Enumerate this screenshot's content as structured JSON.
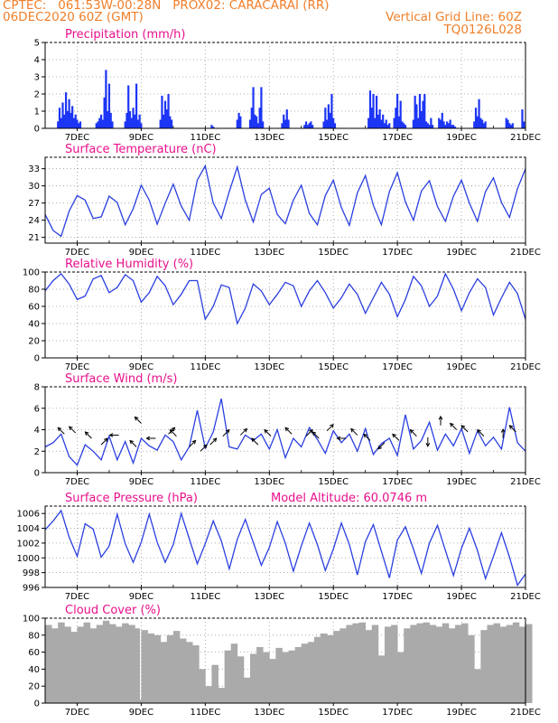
{
  "header": {
    "line1": "CPTEC:   061:53W-00:28N   PROX02: CARACARAI (RR)",
    "line2": "06DEC2020 60Z (GMT)",
    "grid_note": "Vertical Grid Line: 60Z",
    "code": "TQ0126L028"
  },
  "colors": {
    "header": "#f07f2a",
    "title": "#e8108c",
    "line": "#2a3fe0",
    "bar": "#1d35f5",
    "cloud": "#aaaaaa",
    "grid": "#999999"
  },
  "chart_data": [
    {
      "id": "precip",
      "type": "bar",
      "title": "Precipitation (mm/h)",
      "x_ticks": [
        "7DEC",
        "9DEC",
        "11DEC",
        "13DEC",
        "15DEC",
        "17DEC",
        "19DEC",
        "21DEC"
      ],
      "xlim": [
        6.0,
        21.0
      ],
      "ylim": [
        0,
        5
      ],
      "y_ticks": [
        0,
        1,
        2,
        3,
        4,
        5
      ],
      "grid": true,
      "x": [
        6.4,
        6.45,
        6.5,
        6.55,
        6.6,
        6.65,
        6.7,
        6.75,
        6.8,
        6.85,
        6.9,
        6.95,
        7.0,
        7.05,
        7.1,
        7.6,
        7.65,
        7.7,
        7.75,
        7.8,
        7.85,
        7.9,
        7.95,
        8.0,
        8.05,
        8.1,
        8.5,
        8.55,
        8.6,
        8.65,
        8.7,
        8.75,
        8.8,
        8.85,
        8.9,
        8.95,
        9.0,
        9.6,
        9.65,
        9.7,
        9.75,
        9.8,
        9.85,
        9.9,
        9.95,
        11.2,
        11.25,
        12.0,
        12.05,
        12.1,
        12.4,
        12.45,
        12.5,
        12.55,
        12.6,
        12.65,
        12.7,
        12.75,
        12.8,
        13.4,
        13.45,
        13.5,
        13.55,
        13.6,
        14.1,
        14.15,
        14.2,
        14.25,
        14.3,
        14.35,
        14.7,
        14.75,
        14.8,
        14.85,
        14.9,
        14.95,
        15.0,
        15.05,
        16.1,
        16.15,
        16.2,
        16.25,
        16.3,
        16.35,
        16.4,
        16.45,
        16.5,
        16.55,
        16.6,
        16.65,
        16.7,
        16.75,
        16.9,
        16.95,
        17.0,
        17.05,
        17.1,
        17.15,
        17.2,
        17.25,
        17.5,
        17.55,
        17.6,
        17.65,
        17.7,
        17.75,
        17.8,
        17.85,
        17.9,
        17.95,
        18.0,
        18.05,
        18.1,
        18.3,
        18.35,
        18.4,
        18.45,
        18.5,
        18.55,
        18.6,
        18.65,
        18.7,
        18.75,
        18.8,
        19.4,
        19.45,
        19.5,
        19.55,
        19.6,
        19.65,
        19.7,
        19.75,
        20.4,
        20.45,
        20.5,
        20.55,
        20.6,
        20.9,
        20.95
      ],
      "values": [
        0.4,
        1.2,
        0.6,
        1.5,
        0.8,
        2.1,
        1.0,
        1.7,
        0.9,
        1.3,
        0.6,
        0.8,
        0.5,
        0.3,
        0.4,
        0.3,
        0.4,
        0.6,
        0.8,
        0.5,
        1.8,
        3.4,
        1.0,
        2.6,
        0.9,
        0.4,
        0.4,
        0.9,
        2.5,
        1.0,
        0.6,
        1.2,
        0.8,
        2.6,
        0.5,
        0.8,
        0.3,
        0.5,
        1.9,
        0.8,
        1.6,
        1.1,
        2.0,
        0.7,
        0.5,
        0.2,
        0.1,
        0.5,
        0.9,
        0.7,
        0.5,
        1.2,
        2.4,
        0.8,
        0.7,
        0.3,
        1.2,
        2.4,
        0.4,
        0.3,
        0.8,
        0.5,
        1.1,
        0.5,
        0.2,
        0.4,
        0.2,
        0.3,
        0.4,
        0.2,
        0.4,
        1.2,
        0.5,
        1.4,
        0.9,
        2.0,
        0.6,
        0.3,
        0.6,
        2.2,
        1.2,
        2.0,
        0.6,
        1.9,
        0.8,
        1.1,
        0.5,
        0.8,
        0.3,
        0.5,
        0.2,
        0.3,
        0.6,
        1.2,
        2.0,
        0.7,
        1.6,
        0.4,
        0.3,
        0.2,
        0.5,
        1.9,
        1.4,
        0.6,
        2.0,
        1.0,
        1.6,
        2.0,
        0.4,
        0.3,
        0.2,
        0.6,
        0.2,
        0.6,
        0.5,
        0.9,
        0.4,
        0.2,
        0.4,
        0.3,
        0.5,
        0.2,
        0.2,
        0.1,
        0.4,
        1.2,
        0.7,
        1.7,
        0.6,
        0.5,
        0.3,
        0.4,
        0.6,
        0.5,
        0.3,
        0.2,
        0.3,
        1.1,
        0.4
      ]
    },
    {
      "id": "temp",
      "type": "line",
      "title": "Surface Temperature (nC)",
      "x_ticks": [
        "7DEC",
        "9DEC",
        "11DEC",
        "13DEC",
        "15DEC",
        "17DEC",
        "19DEC",
        "21DEC"
      ],
      "xlim": [
        6.0,
        21.0
      ],
      "ylim": [
        20,
        35
      ],
      "y_ticks": [
        21,
        24,
        27,
        30,
        33
      ],
      "grid": true,
      "x": [
        6.0,
        6.25,
        6.5,
        6.75,
        7.0,
        7.25,
        7.5,
        7.75,
        8.0,
        8.25,
        8.5,
        8.75,
        9.0,
        9.25,
        9.5,
        9.75,
        10.0,
        10.25,
        10.5,
        10.75,
        11.0,
        11.25,
        11.5,
        11.75,
        12.0,
        12.25,
        12.5,
        12.75,
        13.0,
        13.25,
        13.5,
        13.75,
        14.0,
        14.25,
        14.5,
        14.75,
        15.0,
        15.25,
        15.5,
        15.75,
        16.0,
        16.25,
        16.5,
        16.75,
        17.0,
        17.25,
        17.5,
        17.75,
        18.0,
        18.25,
        18.5,
        18.75,
        19.0,
        19.25,
        19.5,
        19.75,
        20.0,
        20.25,
        20.5,
        20.75,
        21.0
      ],
      "values": [
        25.0,
        22.2,
        21.2,
        25.6,
        28.3,
        27.5,
        24.3,
        24.6,
        28.2,
        27.1,
        23.2,
        26.0,
        30.1,
        27.5,
        23.3,
        27.0,
        30.3,
        26.5,
        24.0,
        31.0,
        33.5,
        27.0,
        24.3,
        29.0,
        33.3,
        27.5,
        23.7,
        28.5,
        29.6,
        25.0,
        23.4,
        27.5,
        30.1,
        25.2,
        23.2,
        28.3,
        31.0,
        26.2,
        23.1,
        28.8,
        31.8,
        26.6,
        23.2,
        29.0,
        32.3,
        27.2,
        24.0,
        29.1,
        30.9,
        26.4,
        23.8,
        28.2,
        31.0,
        27.0,
        23.8,
        29.0,
        31.4,
        27.1,
        24.5,
        29.5,
        33.0
      ]
    },
    {
      "id": "rh",
      "type": "line",
      "title": "Relative Humidity (%)",
      "x_ticks": [
        "7DEC",
        "9DEC",
        "11DEC",
        "13DEC",
        "15DEC",
        "17DEC",
        "19DEC",
        "21DEC"
      ],
      "xlim": [
        6.0,
        21.0
      ],
      "ylim": [
        0,
        100
      ],
      "y_ticks": [
        0,
        20,
        40,
        60,
        80,
        100
      ],
      "grid": true,
      "x": [
        6.0,
        6.25,
        6.5,
        6.75,
        7.0,
        7.25,
        7.5,
        7.75,
        8.0,
        8.25,
        8.5,
        8.75,
        9.0,
        9.25,
        9.5,
        9.75,
        10.0,
        10.25,
        10.5,
        10.75,
        11.0,
        11.25,
        11.5,
        11.75,
        12.0,
        12.25,
        12.5,
        12.75,
        13.0,
        13.25,
        13.5,
        13.75,
        14.0,
        14.25,
        14.5,
        14.75,
        15.0,
        15.25,
        15.5,
        15.75,
        16.0,
        16.25,
        16.5,
        16.75,
        17.0,
        17.25,
        17.5,
        17.75,
        18.0,
        18.25,
        18.5,
        18.75,
        19.0,
        19.25,
        19.5,
        19.75,
        20.0,
        20.25,
        20.5,
        20.75,
        21.0
      ],
      "values": [
        78,
        90,
        98,
        86,
        68,
        72,
        92,
        96,
        76,
        82,
        97,
        90,
        65,
        76,
        95,
        84,
        62,
        74,
        90,
        90,
        45,
        60,
        85,
        82,
        40,
        58,
        86,
        78,
        62,
        74,
        88,
        84,
        60,
        78,
        90,
        76,
        58,
        70,
        86,
        74,
        52,
        70,
        88,
        74,
        48,
        68,
        95,
        84,
        60,
        72,
        98,
        80,
        55,
        76,
        92,
        82,
        50,
        70,
        88,
        75,
        45
      ]
    },
    {
      "id": "wind",
      "type": "line",
      "title": "Surface Wind (m/s)",
      "x_ticks": [
        "7DEC",
        "9DEC",
        "11DEC",
        "13DEC",
        "15DEC",
        "17DEC",
        "19DEC",
        "21DEC"
      ],
      "xlim": [
        6.0,
        21.0
      ],
      "ylim": [
        0,
        8
      ],
      "y_ticks": [
        0,
        2,
        4,
        6,
        8
      ],
      "grid": true,
      "x": [
        6.0,
        6.25,
        6.5,
        6.75,
        7.0,
        7.25,
        7.5,
        7.75,
        8.0,
        8.25,
        8.5,
        8.75,
        9.0,
        9.25,
        9.5,
        9.75,
        10.0,
        10.25,
        10.5,
        10.75,
        11.0,
        11.25,
        11.5,
        11.75,
        12.0,
        12.25,
        12.5,
        12.75,
        13.0,
        13.25,
        13.5,
        13.75,
        14.0,
        14.25,
        14.5,
        14.75,
        15.0,
        15.25,
        15.5,
        15.75,
        16.0,
        16.25,
        16.5,
        16.75,
        17.0,
        17.25,
        17.5,
        17.75,
        18.0,
        18.25,
        18.5,
        18.75,
        19.0,
        19.25,
        19.5,
        19.75,
        20.0,
        20.25,
        20.5,
        20.75,
        21.0
      ],
      "values": [
        2.4,
        2.8,
        3.6,
        1.5,
        0.7,
        2.6,
        2.0,
        1.2,
        3.4,
        1.2,
        2.9,
        0.9,
        3.2,
        2.5,
        2.1,
        3.5,
        2.9,
        1.2,
        2.4,
        5.8,
        2.3,
        3.8,
        6.9,
        2.4,
        2.2,
        3.5,
        3.0,
        3.6,
        2.2,
        4.0,
        1.4,
        3.2,
        2.4,
        4.2,
        3.1,
        1.8,
        3.9,
        2.8,
        3.6,
        2.0,
        4.1,
        1.7,
        2.7,
        3.2,
        1.6,
        5.4,
        2.2,
        3.0,
        4.7,
        2.1,
        3.6,
        2.5,
        4.1,
        1.8,
        3.9,
        2.5,
        3.3,
        2.2,
        6.1,
        2.8,
        2.0
      ],
      "barbs": [
        {
          "x": 6.6,
          "y": 3.6,
          "dir": "nw"
        },
        {
          "x": 6.95,
          "y": 3.7,
          "dir": "nw"
        },
        {
          "x": 7.45,
          "y": 3.2,
          "dir": "nw"
        },
        {
          "x": 7.75,
          "y": 2.6,
          "dir": "ne"
        },
        {
          "x": 8.3,
          "y": 3.5,
          "dir": "w"
        },
        {
          "x": 8.85,
          "y": 2.4,
          "dir": "nw"
        },
        {
          "x": 9.0,
          "y": 4.6,
          "dir": "nw"
        },
        {
          "x": 9.45,
          "y": 3.2,
          "dir": "w"
        },
        {
          "x": 9.85,
          "y": 3.6,
          "dir": "ne"
        },
        {
          "x": 10.1,
          "y": 3.4,
          "dir": "nw"
        },
        {
          "x": 10.5,
          "y": 2.4,
          "dir": "ne"
        },
        {
          "x": 10.85,
          "y": 2.0,
          "dir": "ne"
        },
        {
          "x": 11.15,
          "y": 2.6,
          "dir": "ne"
        },
        {
          "x": 11.55,
          "y": 3.4,
          "dir": "ne"
        },
        {
          "x": 12.1,
          "y": 3.5,
          "dir": "ne"
        },
        {
          "x": 12.65,
          "y": 2.6,
          "dir": "nw"
        },
        {
          "x": 13.05,
          "y": 3.4,
          "dir": "nw"
        },
        {
          "x": 13.7,
          "y": 3.6,
          "dir": "nw"
        },
        {
          "x": 14.15,
          "y": 3.4,
          "dir": "ne"
        },
        {
          "x": 14.55,
          "y": 3.2,
          "dir": "nw"
        },
        {
          "x": 14.8,
          "y": 3.9,
          "dir": "ne"
        },
        {
          "x": 15.4,
          "y": 3.2,
          "dir": "w"
        },
        {
          "x": 15.75,
          "y": 3.5,
          "dir": "nw"
        },
        {
          "x": 16.15,
          "y": 3.0,
          "dir": "nw"
        },
        {
          "x": 16.6,
          "y": 2.8,
          "dir": "sw"
        },
        {
          "x": 17.05,
          "y": 3.0,
          "dir": "nw"
        },
        {
          "x": 17.6,
          "y": 3.4,
          "dir": "nw"
        },
        {
          "x": 17.95,
          "y": 3.3,
          "dir": "s"
        },
        {
          "x": 18.35,
          "y": 4.4,
          "dir": "n"
        },
        {
          "x": 18.85,
          "y": 4.0,
          "dir": "nw"
        },
        {
          "x": 19.2,
          "y": 3.8,
          "dir": "nw"
        },
        {
          "x": 19.7,
          "y": 3.4,
          "dir": "nw"
        },
        {
          "x": 20.3,
          "y": 3.2,
          "dir": "n"
        },
        {
          "x": 20.7,
          "y": 3.8,
          "dir": "nw"
        }
      ]
    },
    {
      "id": "pressure",
      "type": "line",
      "title": "Surface Pressure (hPa)",
      "annotation": "Model Altitude: 60.0746 m",
      "x_ticks": [
        "7DEC",
        "9DEC",
        "11DEC",
        "13DEC",
        "15DEC",
        "17DEC",
        "19DEC",
        "21DEC"
      ],
      "xlim": [
        6.0,
        21.0
      ],
      "ylim": [
        996,
        1007
      ],
      "y_ticks": [
        996,
        998,
        1000,
        1002,
        1004,
        1006
      ],
      "grid": true,
      "x": [
        6.0,
        6.25,
        6.5,
        6.75,
        7.0,
        7.25,
        7.5,
        7.75,
        8.0,
        8.25,
        8.5,
        8.75,
        9.0,
        9.25,
        9.5,
        9.75,
        10.0,
        10.25,
        10.5,
        10.75,
        11.0,
        11.25,
        11.5,
        11.75,
        12.0,
        12.25,
        12.5,
        12.75,
        13.0,
        13.25,
        13.5,
        13.75,
        14.0,
        14.25,
        14.5,
        14.75,
        15.0,
        15.25,
        15.5,
        15.75,
        16.0,
        16.25,
        16.5,
        16.75,
        17.0,
        17.25,
        17.5,
        17.75,
        18.0,
        18.25,
        18.5,
        18.75,
        19.0,
        19.25,
        19.5,
        19.75,
        20.0,
        20.25,
        20.5,
        20.75,
        21.0
      ],
      "values": [
        1003.8,
        1005.0,
        1006.4,
        1002.8,
        1000.2,
        1004.6,
        1003.9,
        1000.1,
        1001.6,
        1005.9,
        1001.9,
        999.4,
        1002.1,
        1005.9,
        1002.1,
        999.4,
        1001.8,
        1006.0,
        1002.6,
        999.2,
        1001.9,
        1005.0,
        1002.3,
        998.5,
        1002.5,
        1005.2,
        1002.1,
        999.0,
        1001.4,
        1004.9,
        1002.0,
        998.2,
        1001.6,
        1004.7,
        1001.8,
        998.3,
        1001.2,
        1004.7,
        1001.8,
        997.7,
        1002.2,
        1004.5,
        1000.9,
        997.3,
        1002.4,
        1004.2,
        1001.2,
        997.9,
        1002.0,
        1004.4,
        1001.0,
        997.6,
        1001.3,
        1004.0,
        1001.0,
        997.2,
        1000.2,
        1003.4,
        1000.1,
        996.3,
        997.8
      ]
    },
    {
      "id": "cloud",
      "type": "area",
      "title": "Cloud Cover (%)",
      "x_ticks": [
        "7DEC",
        "9DEC",
        "11DEC",
        "13DEC",
        "15DEC",
        "17DEC",
        "19DEC",
        "21DEC"
      ],
      "xlim": [
        6.0,
        21.0
      ],
      "ylim": [
        0,
        100
      ],
      "y_ticks": [
        0,
        20,
        40,
        60,
        80,
        100
      ],
      "grid": true,
      "x": [
        6.0,
        6.2,
        6.4,
        6.6,
        6.8,
        7.0,
        7.2,
        7.4,
        7.6,
        7.8,
        8.0,
        8.2,
        8.4,
        8.6,
        8.8,
        8.95,
        9.0,
        9.2,
        9.4,
        9.6,
        9.8,
        10.0,
        10.2,
        10.4,
        10.6,
        10.8,
        11.0,
        11.2,
        11.4,
        11.6,
        11.8,
        12.0,
        12.2,
        12.4,
        12.6,
        12.8,
        13.0,
        13.2,
        13.4,
        13.6,
        13.8,
        14.0,
        14.2,
        14.4,
        14.6,
        14.8,
        15.0,
        15.2,
        15.4,
        15.6,
        15.8,
        16.0,
        16.2,
        16.4,
        16.6,
        16.8,
        17.0,
        17.2,
        17.4,
        17.6,
        17.8,
        18.0,
        18.2,
        18.4,
        18.6,
        18.8,
        19.0,
        19.2,
        19.4,
        19.6,
        19.8,
        20.0,
        20.2,
        20.4,
        20.6,
        20.8,
        21.0
      ],
      "values": [
        92,
        88,
        95,
        90,
        84,
        90,
        95,
        88,
        92,
        97,
        93,
        90,
        94,
        92,
        88,
        4,
        86,
        82,
        80,
        72,
        80,
        85,
        76,
        72,
        68,
        40,
        20,
        45,
        18,
        62,
        70,
        55,
        30,
        58,
        66,
        60,
        52,
        65,
        60,
        62,
        66,
        70,
        72,
        78,
        82,
        80,
        85,
        88,
        92,
        94,
        95,
        86,
        92,
        56,
        90,
        92,
        60,
        88,
        92,
        94,
        95,
        92,
        90,
        94,
        88,
        92,
        94,
        80,
        40,
        86,
        92,
        94,
        90,
        92,
        95,
        90,
        93
      ]
    }
  ]
}
